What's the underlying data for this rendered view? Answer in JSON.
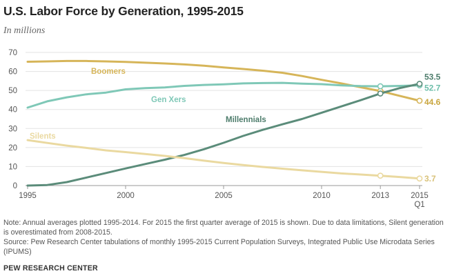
{
  "header": {
    "title": "U.S. Labor Force by Generation, 1995-2015",
    "subtitle": "In millions"
  },
  "footer": {
    "note": "Note: Annual averages plotted 1995-2014. For 2015 the first quarter average of 2015 is shown. Due to data limitations, Silent generation is overestimated from 2008-2015.",
    "source": "Source: Pew Research Center tabulations of monthly 1995-2015 Current Population Surveys, Integrated Public Use Microdata Series (IPUMS)",
    "brand": "PEW RESEARCH CENTER"
  },
  "chart_data": {
    "type": "line",
    "title": "U.S. Labor Force by Generation, 1995-2015",
    "subtitle": "In millions",
    "xlabel": "",
    "ylabel": "",
    "xlim": [
      1995,
      2015
    ],
    "ylim": [
      0,
      70
    ],
    "yticks": [
      0,
      10,
      20,
      30,
      40,
      50,
      60,
      70
    ],
    "xticks": [
      {
        "value": 1995,
        "label": "1995"
      },
      {
        "value": 2000,
        "label": "2000"
      },
      {
        "value": 2005,
        "label": "2005"
      },
      {
        "value": 2010,
        "label": "2010"
      },
      {
        "value": 2013,
        "label": "2013"
      },
      {
        "value": 2015,
        "label": "2015",
        "sublabel": "Q1"
      }
    ],
    "grid": "horizontal",
    "x": [
      1995,
      1996,
      1997,
      1998,
      1999,
      2000,
      2001,
      2002,
      2003,
      2004,
      2005,
      2006,
      2007,
      2008,
      2009,
      2010,
      2011,
      2012,
      2013,
      2014,
      2015
    ],
    "series": [
      {
        "name": "Boomers",
        "color": "#D6B559",
        "values": [
          65.1,
          65.3,
          65.5,
          65.5,
          65.3,
          65.0,
          64.6,
          64.2,
          63.7,
          63.0,
          62.1,
          61.3,
          60.4,
          59.3,
          57.6,
          55.6,
          53.7,
          51.7,
          49.7,
          47.1,
          44.6
        ],
        "end_label": "44.6",
        "markers": [
          2013,
          2015
        ],
        "marker_style": "open"
      },
      {
        "name": "Gen Xers",
        "color": "#7FC8B7",
        "values": [
          41.0,
          44.3,
          46.4,
          48.0,
          48.9,
          50.6,
          51.2,
          51.6,
          52.4,
          52.9,
          53.2,
          53.7,
          53.9,
          54.0,
          53.6,
          53.3,
          52.7,
          52.3,
          52.2,
          52.4,
          52.7
        ],
        "end_label": "52.7",
        "markers": [
          2013,
          2015
        ],
        "marker_style": "open"
      },
      {
        "name": "Millennials",
        "color": "#5B8C7A",
        "values": [
          0.0,
          0.3,
          1.8,
          4.2,
          6.6,
          9.0,
          11.3,
          13.6,
          16.1,
          19.1,
          22.5,
          26.1,
          29.3,
          32.2,
          35.0,
          38.3,
          41.6,
          44.9,
          48.4,
          51.3,
          53.5
        ],
        "end_label": "53.5",
        "markers": [
          2013,
          2015
        ],
        "marker_style": "open"
      },
      {
        "name": "Silents",
        "color": "#EAD9A0",
        "values": [
          23.9,
          22.4,
          21.0,
          19.8,
          18.5,
          17.6,
          16.6,
          15.6,
          14.4,
          13.1,
          11.9,
          10.8,
          9.8,
          8.9,
          8.0,
          7.2,
          6.4,
          5.8,
          5.2,
          4.5,
          3.7
        ],
        "end_label": "3.7",
        "markers": [
          2013,
          2015
        ],
        "marker_style": "open"
      }
    ]
  }
}
